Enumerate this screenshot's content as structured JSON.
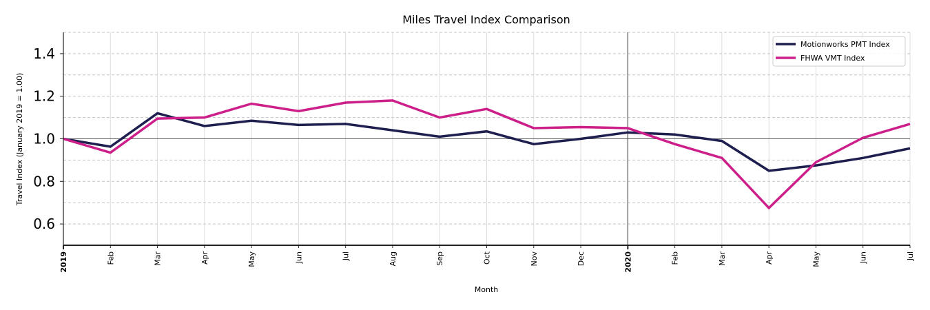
{
  "chart_data": {
    "type": "line",
    "title": "Miles Travel Index Comparison",
    "xlabel": "Month",
    "ylabel": "Travel Index (January 2019 = 1.00)",
    "ylim": [
      0.5,
      1.5
    ],
    "yticks": [
      0.6,
      0.8,
      1.0,
      1.2,
      1.4
    ],
    "ytick_labels": [
      "0.6",
      "0.8",
      "1.0",
      "1.2",
      "1.4"
    ],
    "reference_line_y": 1.0,
    "year_divider_at": "2020",
    "grid": true,
    "legend_position": "upper right",
    "x": [
      "2019",
      "Feb",
      "Mar",
      "Apr",
      "May",
      "Jun",
      "Jul",
      "Aug",
      "Sep",
      "Oct",
      "Nov",
      "Dec",
      "2020",
      "Feb",
      "Mar",
      "Apr",
      "May",
      "Jun",
      "Jul"
    ],
    "x_bold": [
      true,
      false,
      false,
      false,
      false,
      false,
      false,
      false,
      false,
      false,
      false,
      false,
      true,
      false,
      false,
      false,
      false,
      false,
      false
    ],
    "series": [
      {
        "name": "Motionworks PMT Index",
        "color": "#1e1f4f",
        "values": [
          1.0,
          0.963,
          1.12,
          1.06,
          1.085,
          1.065,
          1.07,
          1.04,
          1.01,
          1.035,
          0.975,
          1.0,
          1.03,
          1.02,
          0.99,
          0.85,
          0.875,
          0.91,
          0.955
        ]
      },
      {
        "name": "FHWA VMT Index",
        "color": "#cc1f8a",
        "values": [
          1.0,
          0.935,
          1.095,
          1.1,
          1.165,
          1.13,
          1.17,
          1.18,
          1.1,
          1.14,
          1.05,
          1.055,
          1.05,
          0.975,
          0.91,
          0.675,
          0.89,
          1.005,
          1.07
        ]
      }
    ]
  }
}
